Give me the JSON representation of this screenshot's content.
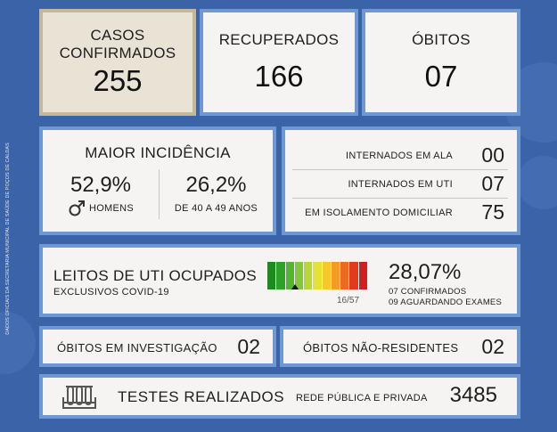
{
  "side_text": "DADOS OFICIAIS DA SECRETARIA MUNICIPAL DE SAÚDE DE POÇOS DE CALDAS",
  "top": {
    "casos": {
      "label_line1": "CASOS",
      "label_line2": "CONFIRMADOS",
      "value": "255"
    },
    "recuperados": {
      "label": "RECUPERADOS",
      "value": "166"
    },
    "obitos": {
      "label": "ÓBITOS",
      "value": "07"
    }
  },
  "incidencia": {
    "title": "MAIOR INCIDÊNCIA",
    "left_pct": "52,9%",
    "left_label": "HOMENS",
    "right_pct": "26,2%",
    "right_label": "DE 40 A 49 ANOS"
  },
  "internacao": {
    "rows": [
      {
        "label": "INTERNADOS EM ALA",
        "value": "00"
      },
      {
        "label": "INTERNADOS EM UTI",
        "value": "07"
      },
      {
        "label": "EM ISOLAMENTO DOMICILIAR",
        "value": "75"
      }
    ]
  },
  "leitos": {
    "title": "LEITOS DE UTI OCUPADOS",
    "subtitle": "EXCLUSIVOS COVID-19",
    "occupied_fraction": 0.2807,
    "gauge_caption": "16/57",
    "percent": "28,07%",
    "detail1": "07 CONFIRMADOS",
    "detail2": "09 AGUARDANDO EXAMES",
    "segment_colors": [
      "#1c8a1c",
      "#2fa12a",
      "#55b432",
      "#86c63a",
      "#b8d637",
      "#e5e234",
      "#f7c72b",
      "#f49b25",
      "#ec6a22",
      "#e03a1f",
      "#cf1f1f"
    ]
  },
  "investigacao": {
    "label": "ÓBITOS EM INVESTIGAÇÃO",
    "value": "02"
  },
  "nao_residentes": {
    "label": "ÓBITOS NÃO-RESIDENTES",
    "value": "02"
  },
  "testes": {
    "icon": "test-tubes-icon",
    "label": "TESTES REALIZADOS",
    "sublabel": "REDE PÚBLICA E PRIVADA",
    "value": "3485"
  },
  "colors": {
    "background": "#3a63a8",
    "panel_border": "#6f97d2",
    "main_panel_border": "#c5b79a"
  }
}
